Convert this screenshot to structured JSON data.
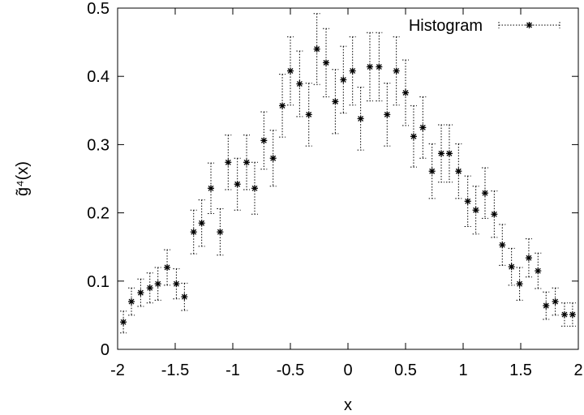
{
  "chart_data": {
    "type": "scatter",
    "title": "",
    "xlabel": "x",
    "ylabel": "g̃⁴(x)",
    "xlim": [
      -2,
      2
    ],
    "ylim": [
      0,
      0.5
    ],
    "xticks": [
      "-2",
      "-1.5",
      "-1",
      "-0.5",
      "0",
      "0.5",
      "1",
      "1.5",
      "2"
    ],
    "yticks": [
      "0",
      "0.1",
      "0.2",
      "0.3",
      "0.4",
      "0.5"
    ],
    "grid": false,
    "legend_position": "top-right",
    "series": [
      {
        "name": "Histogram",
        "marker": "asterisk",
        "error_bars": "dotted",
        "x": [
          -1.95,
          -1.88,
          -1.8,
          -1.72,
          -1.65,
          -1.57,
          -1.49,
          -1.42,
          -1.34,
          -1.27,
          -1.19,
          -1.11,
          -1.04,
          -0.96,
          -0.88,
          -0.81,
          -0.73,
          -0.65,
          -0.57,
          -0.5,
          -0.42,
          -0.34,
          -0.27,
          -0.19,
          -0.11,
          -0.04,
          0.04,
          0.11,
          0.19,
          0.27,
          0.34,
          0.42,
          0.5,
          0.57,
          0.65,
          0.73,
          0.81,
          0.88,
          0.96,
          1.04,
          1.11,
          1.19,
          1.27,
          1.34,
          1.42,
          1.49,
          1.57,
          1.65,
          1.72,
          1.8,
          1.88,
          1.95
        ],
        "y": [
          0.04,
          0.07,
          0.083,
          0.09,
          0.096,
          0.12,
          0.096,
          0.077,
          0.172,
          0.185,
          0.236,
          0.172,
          0.274,
          0.242,
          0.274,
          0.236,
          0.306,
          0.28,
          0.357,
          0.408,
          0.389,
          0.344,
          0.44,
          0.42,
          0.363,
          0.395,
          0.408,
          0.338,
          0.414,
          0.414,
          0.344,
          0.408,
          0.376,
          0.312,
          0.325,
          0.261,
          0.287,
          0.287,
          0.261,
          0.217,
          0.204,
          0.229,
          0.198,
          0.153,
          0.121,
          0.096,
          0.134,
          0.115,
          0.064,
          0.07,
          0.051,
          0.051
        ],
        "err": [
          0.016,
          0.02,
          0.02,
          0.022,
          0.024,
          0.026,
          0.022,
          0.02,
          0.032,
          0.034,
          0.037,
          0.034,
          0.04,
          0.038,
          0.04,
          0.038,
          0.042,
          0.041,
          0.046,
          0.05,
          0.048,
          0.046,
          0.052,
          0.05,
          0.047,
          0.049,
          0.05,
          0.046,
          0.05,
          0.05,
          0.046,
          0.05,
          0.048,
          0.045,
          0.045,
          0.04,
          0.042,
          0.042,
          0.04,
          0.037,
          0.035,
          0.037,
          0.034,
          0.03,
          0.027,
          0.024,
          0.028,
          0.026,
          0.02,
          0.02,
          0.017,
          0.017
        ]
      }
    ]
  }
}
